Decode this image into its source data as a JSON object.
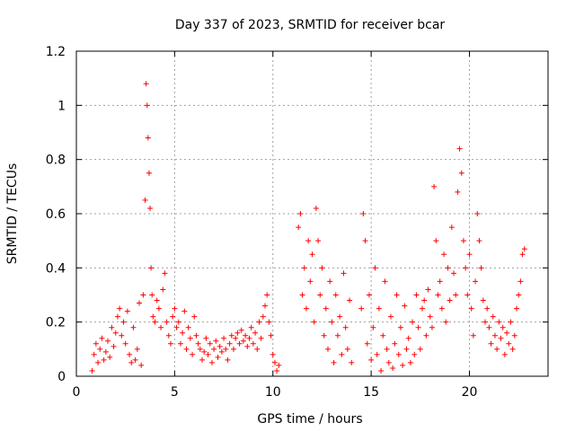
{
  "chart_data": {
    "type": "scatter",
    "title": "Day 337 of 2023, SRMTID for receiver bcar",
    "xlabel": "GPS time / hours",
    "ylabel": "SRMTID / TECUs",
    "xlim": [
      0,
      24
    ],
    "ylim": [
      0,
      1.2
    ],
    "x_ticks": [
      0,
      5,
      10,
      15,
      20
    ],
    "x_tick_labels": [
      "0",
      "5",
      "10",
      "15",
      "20"
    ],
    "y_ticks": [
      0,
      0.2,
      0.4,
      0.6,
      0.8,
      1.0,
      1.2
    ],
    "y_tick_labels": [
      "0",
      "0.2",
      "0.4",
      "0.6",
      "0.8",
      "1",
      "1.2"
    ],
    "grid": true,
    "marker": "+",
    "color": "#ff0000",
    "series": [
      {
        "name": "SRMTID",
        "x": [
          0.8,
          0.9,
          1.0,
          1.1,
          1.2,
          1.3,
          1.4,
          1.5,
          1.6,
          1.7,
          1.8,
          1.9,
          2.0,
          2.1,
          2.2,
          2.3,
          2.4,
          2.5,
          2.6,
          2.7,
          2.8,
          2.9,
          3.0,
          3.1,
          3.2,
          3.3,
          3.4,
          3.5,
          3.55,
          3.6,
          3.65,
          3.7,
          3.75,
          3.8,
          3.85,
          3.9,
          4.0,
          4.1,
          4.2,
          4.3,
          4.4,
          4.5,
          4.6,
          4.7,
          4.8,
          4.9,
          5.0,
          5.1,
          5.2,
          5.3,
          5.4,
          5.5,
          5.6,
          5.7,
          5.8,
          5.9,
          6.0,
          6.1,
          6.2,
          6.3,
          6.4,
          6.5,
          6.6,
          6.7,
          6.8,
          6.9,
          7.0,
          7.1,
          7.2,
          7.3,
          7.4,
          7.5,
          7.6,
          7.7,
          7.8,
          7.9,
          8.0,
          8.1,
          8.2,
          8.3,
          8.4,
          8.5,
          8.6,
          8.7,
          8.8,
          8.9,
          9.0,
          9.1,
          9.2,
          9.3,
          9.4,
          9.5,
          9.6,
          9.7,
          9.8,
          9.9,
          10.0,
          10.1,
          10.2,
          10.3,
          11.3,
          11.4,
          11.5,
          11.6,
          11.7,
          11.8,
          11.9,
          12.0,
          12.1,
          12.2,
          12.3,
          12.4,
          12.5,
          12.6,
          12.7,
          12.8,
          12.9,
          13.0,
          13.1,
          13.2,
          13.3,
          13.4,
          13.5,
          13.6,
          13.7,
          13.8,
          13.9,
          14.0,
          14.5,
          14.6,
          14.7,
          14.8,
          14.9,
          15.0,
          15.1,
          15.2,
          15.3,
          15.4,
          15.5,
          15.6,
          15.7,
          15.8,
          15.9,
          16.0,
          16.1,
          16.2,
          16.3,
          16.4,
          16.5,
          16.6,
          16.7,
          16.8,
          16.9,
          17.0,
          17.1,
          17.2,
          17.3,
          17.4,
          17.5,
          17.6,
          17.7,
          17.8,
          17.9,
          18.0,
          18.1,
          18.2,
          18.3,
          18.4,
          18.5,
          18.6,
          18.7,
          18.8,
          18.9,
          19.0,
          19.1,
          19.2,
          19.3,
          19.4,
          19.5,
          19.6,
          19.7,
          19.8,
          19.9,
          20.0,
          20.1,
          20.2,
          20.3,
          20.4,
          20.5,
          20.6,
          20.7,
          20.8,
          20.9,
          21.0,
          21.1,
          21.2,
          21.3,
          21.4,
          21.5,
          21.6,
          21.7,
          21.8,
          21.9,
          22.0,
          22.1,
          22.2,
          22.3,
          22.4,
          22.5,
          22.6,
          22.7,
          22.8
        ],
        "y": [
          0.02,
          0.08,
          0.12,
          0.05,
          0.1,
          0.14,
          0.06,
          0.09,
          0.13,
          0.07,
          0.18,
          0.11,
          0.16,
          0.22,
          0.25,
          0.15,
          0.2,
          0.12,
          0.24,
          0.08,
          0.05,
          0.18,
          0.06,
          0.1,
          0.27,
          0.04,
          0.3,
          0.65,
          1.08,
          1.0,
          0.88,
          0.75,
          0.62,
          0.4,
          0.3,
          0.22,
          0.2,
          0.28,
          0.25,
          0.18,
          0.32,
          0.38,
          0.2,
          0.15,
          0.12,
          0.22,
          0.25,
          0.18,
          0.2,
          0.12,
          0.16,
          0.24,
          0.1,
          0.18,
          0.14,
          0.08,
          0.22,
          0.15,
          0.12,
          0.1,
          0.06,
          0.09,
          0.14,
          0.08,
          0.12,
          0.05,
          0.1,
          0.13,
          0.07,
          0.11,
          0.09,
          0.14,
          0.1,
          0.06,
          0.12,
          0.15,
          0.1,
          0.14,
          0.16,
          0.12,
          0.17,
          0.13,
          0.15,
          0.11,
          0.14,
          0.18,
          0.12,
          0.16,
          0.1,
          0.2,
          0.14,
          0.22,
          0.26,
          0.3,
          0.2,
          0.15,
          0.08,
          0.05,
          0.02,
          0.04,
          0.55,
          0.6,
          0.3,
          0.4,
          0.25,
          0.5,
          0.35,
          0.45,
          0.2,
          0.62,
          0.5,
          0.3,
          0.4,
          0.15,
          0.25,
          0.1,
          0.35,
          0.2,
          0.05,
          0.3,
          0.15,
          0.22,
          0.08,
          0.38,
          0.18,
          0.1,
          0.28,
          0.05,
          0.25,
          0.6,
          0.5,
          0.12,
          0.3,
          0.06,
          0.18,
          0.4,
          0.08,
          0.25,
          0.02,
          0.15,
          0.35,
          0.1,
          0.05,
          0.22,
          0.03,
          0.12,
          0.3,
          0.08,
          0.18,
          0.04,
          0.26,
          0.1,
          0.14,
          0.05,
          0.2,
          0.08,
          0.3,
          0.18,
          0.1,
          0.25,
          0.28,
          0.15,
          0.32,
          0.22,
          0.18,
          0.7,
          0.5,
          0.3,
          0.35,
          0.25,
          0.45,
          0.2,
          0.4,
          0.28,
          0.55,
          0.38,
          0.3,
          0.68,
          0.84,
          0.75,
          0.5,
          0.4,
          0.3,
          0.45,
          0.25,
          0.15,
          0.35,
          0.6,
          0.5,
          0.4,
          0.28,
          0.2,
          0.25,
          0.18,
          0.12,
          0.22,
          0.15,
          0.1,
          0.2,
          0.14,
          0.18,
          0.08,
          0.16,
          0.12,
          0.2,
          0.1,
          0.15,
          0.25,
          0.3,
          0.35,
          0.45,
          0.47
        ]
      }
    ]
  }
}
